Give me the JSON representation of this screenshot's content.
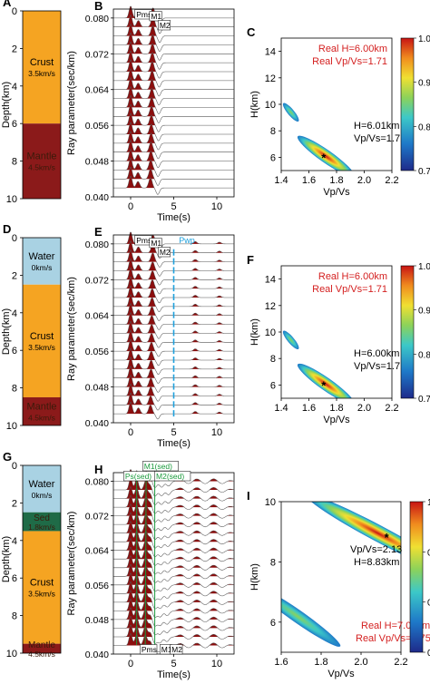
{
  "colors": {
    "crust": "#f5a422",
    "mantle": "#8b1a1a",
    "water": "#a9d2e3",
    "sed": "#1f6b47",
    "trace": "#555555",
    "fill": "#8b0e0e",
    "real_text": "#d42020",
    "pwp": "#1ea0dc",
    "sedlabel": "#1a9a3c"
  },
  "panels": {
    "A": {
      "letter": "A",
      "ylabel": "Depth(km)",
      "yticks": [
        "0",
        "2",
        "4",
        "6",
        "8",
        "10"
      ]
    },
    "D": {
      "letter": "D",
      "ylabel": "Depth(km)",
      "yticks": [
        "0",
        "2",
        "4",
        "6",
        "8",
        "10"
      ]
    },
    "G": {
      "letter": "G",
      "ylabel": "Depth(km)",
      "yticks": [
        "0",
        "2",
        "4",
        "6",
        "8",
        "10"
      ]
    },
    "B": {
      "letter": "B",
      "ylabel": "Ray parameter(sec/km)",
      "xlabel": "Time(s)",
      "xticks": [
        "0",
        "5",
        "10"
      ],
      "yticks": [
        "0.080",
        "0.072",
        "0.064",
        "0.056",
        "0.048",
        "0.040"
      ]
    },
    "E": {
      "letter": "E",
      "ylabel": "Ray parameter(sec/km)",
      "xlabel": "Time(s)",
      "xticks": [
        "0",
        "5",
        "10"
      ],
      "yticks": [
        "0.080",
        "0.072",
        "0.064",
        "0.056",
        "0.048",
        "0.040"
      ]
    },
    "H": {
      "letter": "H",
      "ylabel": "Ray parameter(sec/km)",
      "xlabel": "Time(s)",
      "xticks": [
        "0",
        "5",
        "10"
      ],
      "yticks": [
        "0.080",
        "0.072",
        "0.064",
        "0.056",
        "0.048",
        "0.040"
      ]
    },
    "C": {
      "letter": "C",
      "ylabel": "H(km)",
      "xlabel": "Vp/Vs",
      "xticks": [
        "1.4",
        "1.6",
        "1.8",
        "2.0",
        "2.2"
      ],
      "yticks": [
        "14",
        "12",
        "10",
        "8",
        "6"
      ]
    },
    "F": {
      "letter": "F",
      "ylabel": "H(km)",
      "xlabel": "Vp/Vs",
      "xticks": [
        "1.4",
        "1.6",
        "1.8",
        "2.0",
        "2.2"
      ],
      "yticks": [
        "14",
        "12",
        "10",
        "8",
        "6"
      ]
    },
    "I": {
      "letter": "I",
      "ylabel": "H(km)",
      "xlabel": "Vp/Vs",
      "xticks": [
        "1.6",
        "1.8",
        "2.0",
        "2.2"
      ],
      "yticks": [
        "10",
        "8",
        "6"
      ]
    }
  },
  "colorbar_ticks": [
    "1.0",
    "0.9",
    "0.8",
    "0.7"
  ],
  "colorbar_ticks_I": [
    "1.0",
    "0.9",
    "0.8",
    "0.7"
  ],
  "chart_data": [
    {
      "panel": "A",
      "type": "table",
      "layers": [
        {
          "name": "Crust",
          "velocity": "3.5km/s",
          "top": 0,
          "bottom": 6
        },
        {
          "name": "Mantle",
          "velocity": "4.5km/s",
          "top": 6,
          "bottom": 10
        }
      ],
      "ylabel": "Depth(km)",
      "ylim": [
        10,
        0
      ]
    },
    {
      "panel": "B",
      "type": "line",
      "title": "",
      "xlabel": "Time(s)",
      "ylabel": "Ray parameter(sec/km)",
      "xlim": [
        -2,
        12
      ],
      "ylim": [
        0.04,
        0.082
      ],
      "ray_parameters": [
        0.08,
        0.078,
        0.076,
        0.074,
        0.072,
        0.07,
        0.068,
        0.066,
        0.064,
        0.062,
        0.06,
        0.058,
        0.056,
        0.054,
        0.052,
        0.05,
        0.048,
        0.046,
        0.044,
        0.042
      ],
      "phases": [
        "Pms",
        "M1",
        "M2"
      ],
      "arrivals_s": {
        "P": 0.0,
        "Pms": 0.9,
        "M1": 2.6,
        "M2": 3.4
      }
    },
    {
      "panel": "C",
      "type": "heatmap",
      "xlabel": "Vp/Vs",
      "ylabel": "H(km)",
      "xlim": [
        1.4,
        2.2
      ],
      "ylim": [
        5,
        15
      ],
      "colorbar": [
        0.7,
        1.0
      ],
      "estimate": {
        "H": "H=6.01km",
        "ratio": "Vp/Vs=1.71",
        "H_value": 6.01,
        "vpvs_value": 1.71
      },
      "real": {
        "H": "Real H=6.00km",
        "ratio": "Real Vp/Vs=1.71"
      }
    },
    {
      "panel": "D",
      "type": "table",
      "layers": [
        {
          "name": "Water",
          "velocity": "0km/s",
          "top": 0,
          "bottom": 2.5
        },
        {
          "name": "Crust",
          "velocity": "3.5km/s",
          "top": 2.5,
          "bottom": 8.5
        },
        {
          "name": "Mantle",
          "velocity": "4.5km/s",
          "top": 8.5,
          "bottom": 10
        }
      ],
      "ylabel": "Depth(km)",
      "ylim": [
        10,
        0
      ]
    },
    {
      "panel": "E",
      "type": "line",
      "xlabel": "Time(s)",
      "ylabel": "Ray parameter(sec/km)",
      "xlim": [
        -2,
        12
      ],
      "ylim": [
        0.04,
        0.082
      ],
      "phases": [
        "Pms",
        "M1",
        "M2",
        "Pwp"
      ],
      "arrivals_s": {
        "P": 0.0,
        "Pms": 0.9,
        "M1": 2.6,
        "M2": 3.4,
        "Pwp": 5.0
      }
    },
    {
      "panel": "F",
      "type": "heatmap",
      "xlabel": "Vp/Vs",
      "ylabel": "H(km)",
      "xlim": [
        1.4,
        2.2
      ],
      "ylim": [
        5,
        15
      ],
      "colorbar": [
        0.7,
        1.0
      ],
      "estimate": {
        "H": "H=6.00km",
        "ratio": "Vp/Vs=1.71",
        "H_value": 6.0,
        "vpvs_value": 1.71
      },
      "real": {
        "H": "Real H=6.00km",
        "ratio": "Real Vp/Vs=1.71"
      }
    },
    {
      "panel": "G",
      "type": "table",
      "layers": [
        {
          "name": "Water",
          "velocity": "0km/s",
          "top": 0,
          "bottom": 2.5
        },
        {
          "name": "Sed",
          "velocity": "1.8km/s",
          "top": 2.5,
          "bottom": 3.5
        },
        {
          "name": "Crust",
          "velocity": "3.5km/s",
          "top": 3.5,
          "bottom": 9.5
        },
        {
          "name": "Mantle",
          "velocity": "4.5km/s",
          "top": 9.5,
          "bottom": 10
        }
      ],
      "ylabel": "Depth(km)",
      "ylim": [
        10,
        0
      ]
    },
    {
      "panel": "H",
      "type": "line",
      "xlabel": "Time(s)",
      "ylabel": "Ray parameter(sec/km)",
      "xlim": [
        -2,
        12
      ],
      "ylim": [
        0.04,
        0.082
      ],
      "phases": [
        "M1(sed)",
        "Ps(sed)",
        "M2(sed)",
        "Pms",
        "M1",
        "M2"
      ],
      "arrivals_s": {
        "P": 0.0,
        "Ps(sed)": 0.7,
        "M1(sed)": 1.8,
        "M2(sed)": 2.8,
        "Pms": 2.3,
        "M1": 3.6,
        "M2": 4.4
      }
    },
    {
      "panel": "I",
      "type": "heatmap",
      "xlabel": "Vp/Vs",
      "ylabel": "H(km)",
      "xlim": [
        1.6,
        2.2
      ],
      "ylim": [
        5,
        10
      ],
      "colorbar": [
        0.7,
        1.0
      ],
      "estimate": {
        "H": "H=8.83km",
        "ratio": "Vp/Vs=2.13",
        "H_value": 8.83,
        "vpvs_value": 2.13
      },
      "real": {
        "H": "Real H=7.00km",
        "ratio": "Real Vp/Vs=1.75"
      }
    }
  ]
}
